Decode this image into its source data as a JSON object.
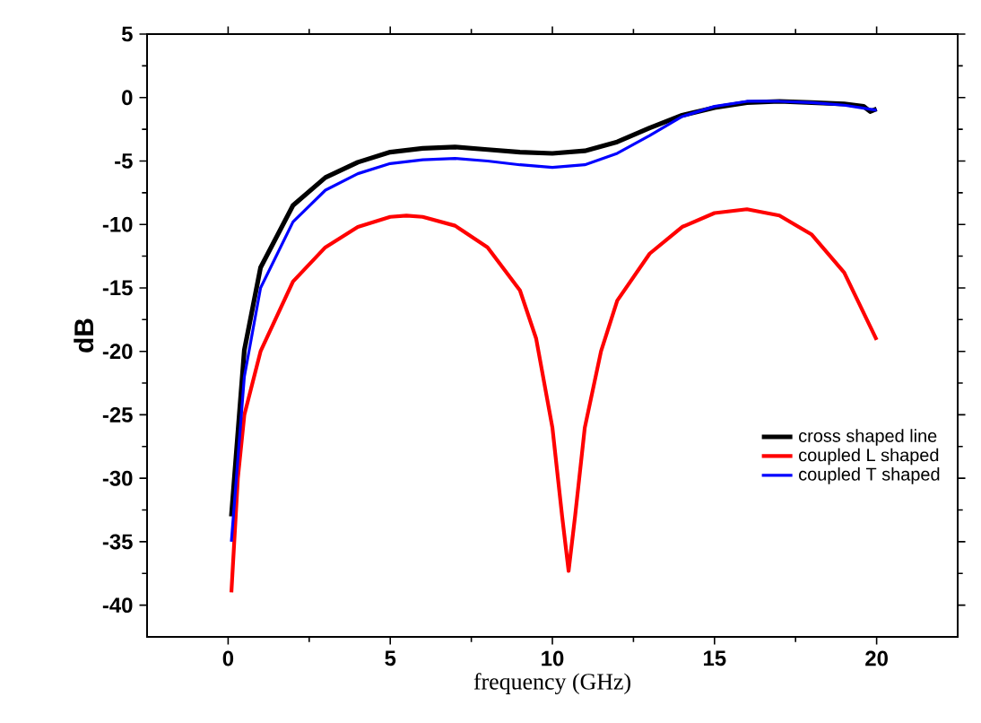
{
  "chart_data": {
    "type": "line",
    "xlabel": "frequency (GHz)",
    "ylabel": "dB",
    "xlim": [
      -2.5,
      22.5
    ],
    "ylim": [
      -42.5,
      5
    ],
    "xticks": [
      0,
      5,
      10,
      15,
      20
    ],
    "yticks": [
      -40,
      -35,
      -30,
      -25,
      -20,
      -15,
      -10,
      -5,
      0,
      5
    ],
    "grid": false,
    "legend": "right",
    "marker": "none",
    "line_style": "solid",
    "series": [
      {
        "name": "cross shaped line",
        "color": "#000000",
        "x": [
          0.1,
          0.5,
          1,
          2,
          3,
          4,
          5,
          6,
          7,
          8,
          9,
          10,
          11,
          12,
          13,
          14,
          15,
          16,
          17,
          18,
          19,
          19.6,
          19.8,
          20
        ],
        "values": [
          -33,
          -19.9,
          -13.4,
          -8.5,
          -6.3,
          -5.1,
          -4.3,
          -4.0,
          -3.9,
          -4.1,
          -4.3,
          -4.4,
          -4.2,
          -3.5,
          -2.4,
          -1.4,
          -0.8,
          -0.4,
          -0.3,
          -0.4,
          -0.5,
          -0.7,
          -1.1,
          -0.9
        ]
      },
      {
        "name": "coupled L shaped",
        "color": "#ff0000",
        "x": [
          0.1,
          0.3,
          0.5,
          1,
          2,
          3,
          4,
          5,
          5.5,
          6,
          7,
          8,
          9,
          9.5,
          10,
          10.3,
          10.5,
          10.7,
          11,
          11.5,
          12,
          13,
          14,
          15,
          16,
          17,
          18,
          19,
          20
        ],
        "values": [
          -39,
          -30,
          -25,
          -20,
          -14.5,
          -11.8,
          -10.2,
          -9.4,
          -9.3,
          -9.4,
          -10.1,
          -11.8,
          -15.2,
          -19,
          -26,
          -33,
          -37.3,
          -33,
          -26,
          -20,
          -16,
          -12.3,
          -10.2,
          -9.1,
          -8.8,
          -9.3,
          -10.8,
          -13.8,
          -19.1
        ]
      },
      {
        "name": "coupled T shaped",
        "color": "#0000ff",
        "x": [
          0.1,
          0.5,
          1,
          2,
          3,
          4,
          5,
          6,
          7,
          8,
          9,
          10,
          11,
          12,
          13,
          14,
          15,
          16,
          17,
          18,
          19,
          20
        ],
        "values": [
          -35,
          -22,
          -15,
          -9.8,
          -7.3,
          -6.0,
          -5.2,
          -4.9,
          -4.8,
          -5.0,
          -5.3,
          -5.5,
          -5.3,
          -4.4,
          -3.0,
          -1.5,
          -0.7,
          -0.3,
          -0.3,
          -0.4,
          -0.6,
          -1.0
        ]
      }
    ]
  }
}
